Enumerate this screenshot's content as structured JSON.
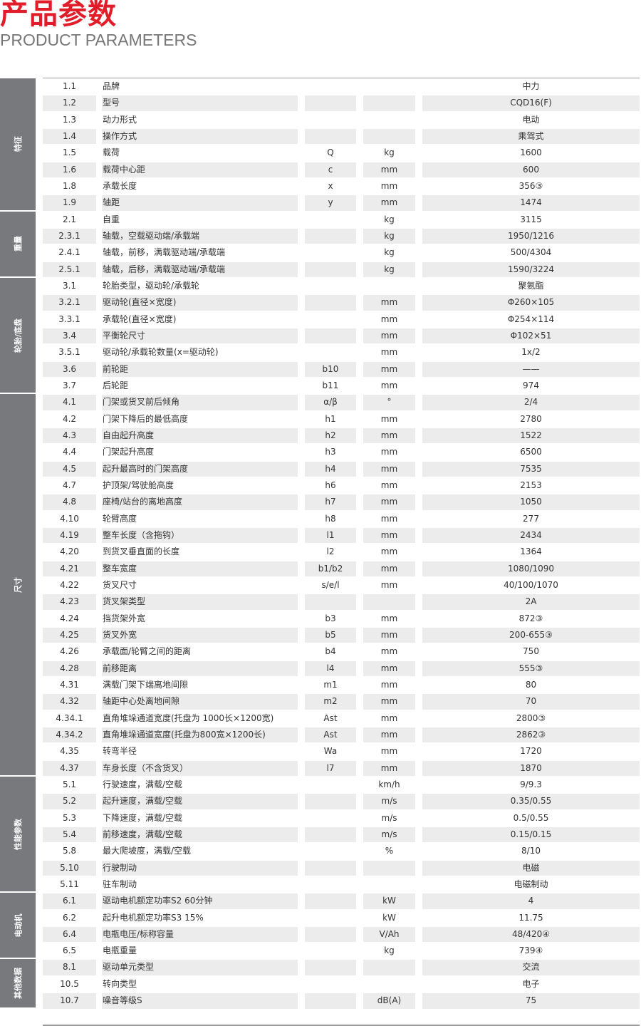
{
  "header": {
    "title_cn": "产品参数",
    "title_en": "PRODUCT PARAMETERS",
    "accent_color": "#e11d2a"
  },
  "sections": [
    {
      "label": "特征",
      "rows": [
        [
          "1.1",
          "品牌",
          "",
          "",
          "中力"
        ],
        [
          "1.2",
          "型号",
          "",
          "",
          "CQD16(F)"
        ],
        [
          "1.3",
          "动力形式",
          "",
          "",
          "电动"
        ],
        [
          "1.4",
          "操作方式",
          "",
          "",
          "乘驾式"
        ],
        [
          "1.5",
          "载荷",
          "Q",
          "kg",
          "1600"
        ],
        [
          "1.6",
          "载荷中心距",
          "c",
          "mm",
          "600"
        ],
        [
          "1.8",
          "承载长度",
          "x",
          "mm",
          "356③"
        ],
        [
          "1.9",
          "轴距",
          "y",
          "mm",
          "1474"
        ]
      ]
    },
    {
      "label": "重量",
      "rows": [
        [
          "2.1",
          "自重",
          "",
          "kg",
          "3115"
        ],
        [
          "2.3.1",
          "轴载，空载驱动端/承载端",
          "",
          "kg",
          "1950/1216"
        ],
        [
          "2.4.1",
          "轴载，前移，满载驱动端/承载端",
          "",
          "kg",
          "500/4304"
        ],
        [
          "2.5.1",
          "轴载，后移，满载驱动端/承载端",
          "",
          "kg",
          "1590/3224"
        ]
      ]
    },
    {
      "label": "轮胎/底盘",
      "rows": [
        [
          "3.1",
          "轮胎类型，驱动轮/承载轮",
          "",
          "",
          "聚氨酯"
        ],
        [
          "3.2.1",
          "驱动轮(直径×宽度)",
          "",
          "mm",
          "Φ260×105"
        ],
        [
          "3.3.1",
          "承载轮(直径×宽度)",
          "",
          "mm",
          "Φ254×114"
        ],
        [
          "3.4",
          "平衡轮尺寸",
          "",
          "mm",
          "Φ102×51"
        ],
        [
          "3.5.1",
          "驱动轮/承载轮数量(x=驱动轮)",
          "",
          "mm",
          "1x/2"
        ],
        [
          "3.6",
          "前轮距",
          "b10",
          "mm",
          "——"
        ],
        [
          "3.7",
          "后轮距",
          "b11",
          "mm",
          "974"
        ]
      ]
    },
    {
      "label": "尺寸",
      "rows": [
        [
          "4.1",
          "门架或货叉前后倾角",
          "α/β",
          "°",
          "2/4"
        ],
        [
          "4.2",
          "门架下降后的最低高度",
          "h1",
          "mm",
          "2780"
        ],
        [
          "4.3",
          "自由起升高度",
          "h2",
          "mm",
          "1522"
        ],
        [
          "4.4",
          "门架起升高度",
          "h3",
          "mm",
          "6500"
        ],
        [
          "4.5",
          "起升最高时的门架高度",
          "h4",
          "mm",
          "7535"
        ],
        [
          "4.7",
          "护顶架/驾驶舱高度",
          "h6",
          "mm",
          "2153"
        ],
        [
          "4.8",
          "座椅/站台的离地高度",
          "h7",
          "mm",
          "1050"
        ],
        [
          "4.10",
          "轮臂高度",
          "h8",
          "mm",
          "277"
        ],
        [
          "4.19",
          "整车长度（含拖钩）",
          "l1",
          "mm",
          "2434"
        ],
        [
          "4.20",
          "到货叉垂直面的长度",
          "l2",
          "mm",
          "1364"
        ],
        [
          "4.21",
          "整车宽度",
          "b1/b2",
          "mm",
          "1080/1090"
        ],
        [
          "4.22",
          "货叉尺寸",
          "s/e/l",
          "mm",
          "40/100/1070"
        ],
        [
          "4.23",
          "货叉架类型",
          "",
          "",
          "2A"
        ],
        [
          "4.24",
          "挡货架外宽",
          "b3",
          "mm",
          "872③"
        ],
        [
          "4.25",
          "货叉外宽",
          "b5",
          "mm",
          "200-655③"
        ],
        [
          "4.26",
          "承载面/轮臂之间的距离",
          "b4",
          "mm",
          "750"
        ],
        [
          "4.28",
          "前移距离",
          "l4",
          "mm",
          "555③"
        ],
        [
          "4.31",
          "满载门架下端离地间隙",
          "m1",
          "mm",
          "80"
        ],
        [
          "4.32",
          "轴距中心处离地间隙",
          "m2",
          "mm",
          "70"
        ],
        [
          "4.34.1",
          "直角堆垛通道宽度(托盘为 1000长×1200宽)",
          "Ast",
          "mm",
          "2800③"
        ],
        [
          "4.34.2",
          "直角堆垛通道宽度(托盘为800宽×1200长)",
          "Ast",
          "mm",
          "2862③"
        ],
        [
          "4.35",
          "转弯半径",
          "Wa",
          "mm",
          "1720"
        ],
        [
          "4.37",
          "车身长度（不含货叉）",
          "l7",
          "mm",
          "1870"
        ]
      ]
    },
    {
      "label": "性能参数",
      "rows": [
        [
          "5.1",
          "行驶速度，满载/空载",
          "",
          "km/h",
          "9/9.3"
        ],
        [
          "5.2",
          "起升速度，满载/空载",
          "",
          "m/s",
          "0.35/0.55"
        ],
        [
          "5.3",
          "下降速度，满载/空载",
          "",
          "m/s",
          "0.5/0.55"
        ],
        [
          "5.4",
          "前移速度，满载/空载",
          "",
          "m/s",
          "0.15/0.15"
        ],
        [
          "5.8",
          "最大爬坡度，满载/空载",
          "",
          "%",
          "8/10"
        ],
        [
          "5.10",
          "行驶制动",
          "",
          "",
          "电磁"
        ],
        [
          "5.11",
          "驻车制动",
          "",
          "",
          "电磁制动"
        ]
      ]
    },
    {
      "label": "电动机",
      "rows": [
        [
          "6.1",
          "驱动电机额定功率S2 60分钟",
          "",
          "kW",
          "4"
        ],
        [
          "6.2",
          "起升电机额定功率S3 15%",
          "",
          "kW",
          "11.75"
        ],
        [
          "6.4",
          "电瓶电压/标称容量",
          "",
          "V/Ah",
          "48/420④"
        ],
        [
          "6.5",
          "电瓶重量",
          "",
          "kg",
          "739④"
        ]
      ]
    },
    {
      "label": "其他数据",
      "rows": [
        [
          "8.1",
          "驱动单元类型",
          "",
          "",
          "交流"
        ],
        [
          "10.5",
          "转向类型",
          "",
          "",
          "电子"
        ],
        [
          "10.7",
          "噪音等级S",
          "",
          "dB(A)",
          "75"
        ]
      ]
    }
  ]
}
